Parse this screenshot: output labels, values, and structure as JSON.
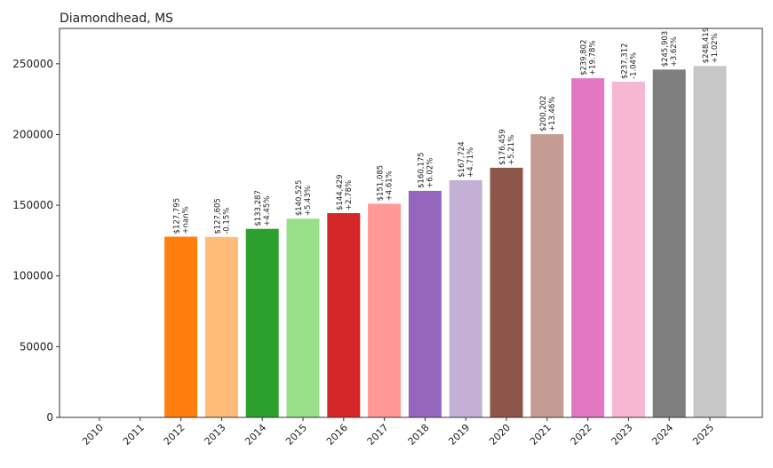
{
  "chart_data": {
    "type": "bar",
    "title": "Diamondhead, MS",
    "xlabel": "",
    "ylabel": "",
    "categories": [
      "2010",
      "2011",
      "2012",
      "2013",
      "2014",
      "2015",
      "2016",
      "2017",
      "2018",
      "2019",
      "2020",
      "2021",
      "2022",
      "2023",
      "2024",
      "2025"
    ],
    "values": [
      0,
      0,
      127795,
      127605,
      133287,
      140525,
      144429,
      151085,
      160175,
      167724,
      176459,
      200202,
      239802,
      237312,
      245903,
      248419
    ],
    "value_labels": [
      "",
      "",
      "$127,795",
      "$127,605",
      "$133,287",
      "$140,525",
      "$144,429",
      "$151,085",
      "$160,175",
      "$167,724",
      "$176,459",
      "$200,202",
      "$239,802",
      "$237,312",
      "$245,903",
      "$248,419"
    ],
    "change_labels": [
      "",
      "",
      "+nan%",
      "-0.15%",
      "+4.45%",
      "+5.43%",
      "+2.78%",
      "+4.61%",
      "+6.02%",
      "+4.71%",
      "+5.21%",
      "+13.46%",
      "+19.78%",
      "-1.04%",
      "+3.62%",
      "+1.02%"
    ],
    "colors": [
      "#1f77b4",
      "#aec7e8",
      "#ff7f0e",
      "#ffbb78",
      "#2ca02c",
      "#98df8a",
      "#d62728",
      "#ff9896",
      "#9467bd",
      "#c5b0d5",
      "#8c564b",
      "#c49c94",
      "#e377c2",
      "#f7b6d2",
      "#7f7f7f",
      "#c7c7c7"
    ],
    "ylim": [
      0,
      275000
    ],
    "yticks": [
      0,
      50000,
      100000,
      150000,
      200000,
      250000
    ],
    "ytick_labels": [
      "0",
      "50000",
      "100000",
      "150000",
      "200000",
      "250000"
    ],
    "grid": false,
    "legend": "none"
  }
}
